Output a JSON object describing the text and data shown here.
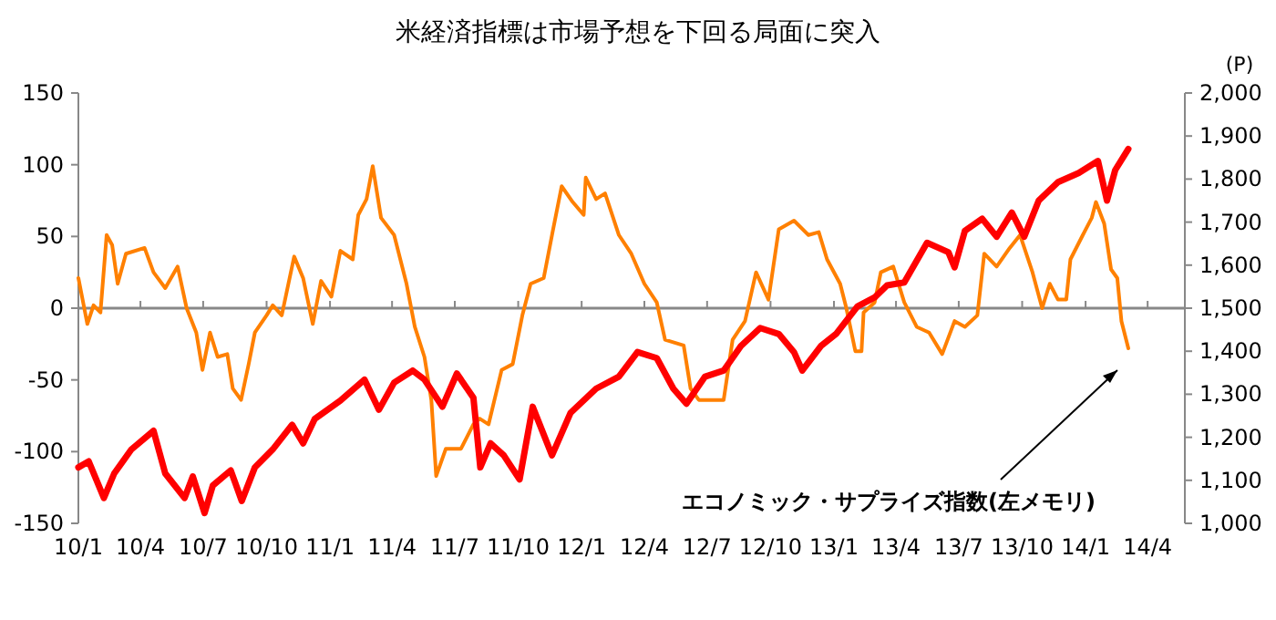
{
  "chart_data": {
    "type": "line",
    "title": "米経済指標は市場予想を下回る局面に突入",
    "y2label": "(P)",
    "xlim": [
      "2010-01-01",
      "2014-05-25"
    ],
    "xticks": [
      {
        "value": "2010-01",
        "label": "10/1"
      },
      {
        "value": "2010-04",
        "label": "10/4"
      },
      {
        "value": "2010-07",
        "label": "10/7"
      },
      {
        "value": "2010-10",
        "label": "10/10"
      },
      {
        "value": "2011-01",
        "label": "11/1"
      },
      {
        "value": "2011-04",
        "label": "11/4"
      },
      {
        "value": "2011-07",
        "label": "11/7"
      },
      {
        "value": "2011-10",
        "label": "11/10"
      },
      {
        "value": "2012-01",
        "label": "12/1"
      },
      {
        "value": "2012-04",
        "label": "12/4"
      },
      {
        "value": "2012-07",
        "label": "12/7"
      },
      {
        "value": "2012-10",
        "label": "12/10"
      },
      {
        "value": "2013-01",
        "label": "13/1"
      },
      {
        "value": "2013-04",
        "label": "13/4"
      },
      {
        "value": "2013-07",
        "label": "13/7"
      },
      {
        "value": "2013-10",
        "label": "13/10"
      },
      {
        "value": "2014-01",
        "label": "14/1"
      },
      {
        "value": "2014-04",
        "label": "14/4"
      }
    ],
    "ylim": [
      -150,
      150
    ],
    "yticks": [
      -150,
      -100,
      -50,
      0,
      50,
      100,
      150
    ],
    "y2lim": [
      1000,
      2000
    ],
    "y2ticks": [
      {
        "value": 1000,
        "label": "1,000"
      },
      {
        "value": 1100,
        "label": "1,100"
      },
      {
        "value": 1200,
        "label": "1,200"
      },
      {
        "value": 1300,
        "label": "1,300"
      },
      {
        "value": 1400,
        "label": "1,400"
      },
      {
        "value": 1500,
        "label": "1,500"
      },
      {
        "value": 1600,
        "label": "1,600"
      },
      {
        "value": 1700,
        "label": "1,700"
      },
      {
        "value": 1800,
        "label": "1,800"
      },
      {
        "value": 1900,
        "label": "1,900"
      },
      {
        "value": 2000,
        "label": "2,000"
      }
    ],
    "marker": "none",
    "line_style": "solid",
    "series": [
      {
        "name": "エコノミック・サプライズ指数(左メモリ)",
        "color": "#ff8000",
        "x": [
          "2010-01-01",
          "2010-01-14",
          "2010-01-23",
          "2010-02-02",
          "2010-02-11",
          "2010-02-19",
          "2010-02-27",
          "2010-03-11",
          "2010-04-07",
          "2010-04-20",
          "2010-05-07",
          "2010-05-25",
          "2010-06-07",
          "2010-06-21",
          "2010-06-30",
          "2010-07-11",
          "2010-07-22",
          "2010-08-05",
          "2010-08-13",
          "2010-08-25",
          "2010-09-05",
          "2010-09-14",
          "2010-10-01",
          "2010-10-10",
          "2010-10-23",
          "2010-11-10",
          "2010-11-23",
          "2010-12-07",
          "2010-12-19",
          "2011-01-03",
          "2011-01-16",
          "2011-02-03",
          "2011-02-11",
          "2011-02-23",
          "2011-03-04",
          "2011-03-16",
          "2011-04-04",
          "2011-04-22",
          "2011-05-04",
          "2011-05-18",
          "2011-05-28",
          "2011-06-04",
          "2011-06-18",
          "2011-07-10",
          "2011-07-28",
          "2011-08-06",
          "2011-08-19",
          "2011-09-07",
          "2011-09-23",
          "2011-10-07",
          "2011-10-19",
          "2011-11-07",
          "2011-11-19",
          "2011-12-03",
          "2011-12-19",
          "2012-01-04",
          "2012-01-07",
          "2012-01-22",
          "2012-02-04",
          "2012-02-24",
          "2012-03-13",
          "2012-04-01",
          "2012-04-19",
          "2012-05-01",
          "2012-05-28",
          "2012-06-07",
          "2012-06-19",
          "2012-07-25",
          "2012-08-07",
          "2012-08-25",
          "2012-09-10",
          "2012-09-28",
          "2012-10-13",
          "2012-11-04",
          "2012-11-25",
          "2012-12-10",
          "2012-12-22",
          "2013-01-10",
          "2013-01-19",
          "2013-02-01",
          "2013-02-10",
          "2013-02-13",
          "2013-03-01",
          "2013-03-10",
          "2013-03-28",
          "2013-04-13",
          "2013-05-01",
          "2013-05-19",
          "2013-06-07",
          "2013-06-25",
          "2013-07-10",
          "2013-07-28",
          "2013-08-07",
          "2013-08-25",
          "2013-09-13",
          "2013-09-28",
          "2013-10-16",
          "2013-10-30",
          "2013-11-10",
          "2013-11-22",
          "2013-12-04",
          "2013-12-10",
          "2013-12-28",
          "2014-01-10",
          "2014-01-16",
          "2014-01-28",
          "2014-02-07",
          "2014-02-16",
          "2014-02-22",
          "2014-03-04"
        ],
        "values": [
          21,
          -11,
          2,
          -3,
          51,
          44,
          17,
          38,
          42,
          25,
          14,
          29,
          0,
          -17,
          -43,
          -17,
          -34,
          -32,
          -56,
          -64,
          -39,
          -17,
          -5,
          2,
          -5,
          36,
          21,
          -11,
          19,
          8,
          40,
          34,
          65,
          76,
          99,
          63,
          51,
          17,
          -13,
          -34,
          -64,
          -117,
          -98,
          -98,
          -81,
          -77,
          -81,
          -43,
          -39,
          -5,
          17,
          21,
          51,
          85,
          74,
          65,
          91,
          76,
          80,
          51,
          38,
          17,
          4,
          -22,
          -26,
          -56,
          -64,
          -64,
          -22,
          -9,
          25,
          6,
          55,
          61,
          51,
          53,
          34,
          17,
          0,
          -30,
          -30,
          -3,
          4,
          25,
          29,
          4,
          -13,
          -17,
          -32,
          -9,
          -13,
          -5,
          38,
          29,
          42,
          51,
          25,
          0,
          17,
          6,
          6,
          34,
          51,
          63,
          74,
          59,
          27,
          21,
          -9,
          -28
        ]
      },
      {
        "color": "#ff0000",
        "axis": "y2",
        "x": [
          "2010-01-01",
          "2010-01-16",
          "2010-02-07",
          "2010-02-22",
          "2010-03-19",
          "2010-04-20",
          "2010-05-07",
          "2010-06-04",
          "2010-06-16",
          "2010-07-03",
          "2010-07-15",
          "2010-08-10",
          "2010-08-26",
          "2010-09-14",
          "2010-10-10",
          "2010-11-07",
          "2010-11-23",
          "2010-12-10",
          "2011-01-16",
          "2011-02-20",
          "2011-03-13",
          "2011-04-04",
          "2011-05-01",
          "2011-05-18",
          "2011-06-13",
          "2011-07-04",
          "2011-07-28",
          "2011-08-07",
          "2011-08-22",
          "2011-09-10",
          "2011-10-03",
          "2011-10-22",
          "2011-11-19",
          "2011-12-16",
          "2012-01-22",
          "2012-02-24",
          "2012-03-22",
          "2012-04-19",
          "2012-05-13",
          "2012-06-01",
          "2012-06-28",
          "2012-07-25",
          "2012-08-19",
          "2012-09-16",
          "2012-10-13",
          "2012-11-04",
          "2012-11-16",
          "2012-12-13",
          "2013-01-04",
          "2013-02-04",
          "2013-03-01",
          "2013-03-19",
          "2013-04-13",
          "2013-05-16",
          "2013-06-16",
          "2013-06-25",
          "2013-07-10",
          "2013-08-04",
          "2013-08-25",
          "2013-09-16",
          "2013-10-04",
          "2013-10-25",
          "2013-11-22",
          "2013-12-22",
          "2014-01-19",
          "2014-02-01",
          "2014-02-13",
          "2014-03-04"
        ],
        "values": [
          1130,
          1144,
          1059,
          1116,
          1172,
          1215,
          1116,
          1059,
          1109,
          1024,
          1088,
          1123,
          1052,
          1130,
          1172,
          1229,
          1186,
          1243,
          1285,
          1334,
          1264,
          1327,
          1355,
          1334,
          1271,
          1348,
          1292,
          1130,
          1186,
          1158,
          1102,
          1271,
          1158,
          1257,
          1313,
          1341,
          1398,
          1384,
          1313,
          1278,
          1341,
          1355,
          1412,
          1454,
          1440,
          1398,
          1355,
          1412,
          1440,
          1504,
          1525,
          1553,
          1560,
          1652,
          1630,
          1595,
          1680,
          1708,
          1666,
          1722,
          1666,
          1750,
          1793,
          1814,
          1842,
          1750,
          1821,
          1870
        ]
      }
    ]
  }
}
